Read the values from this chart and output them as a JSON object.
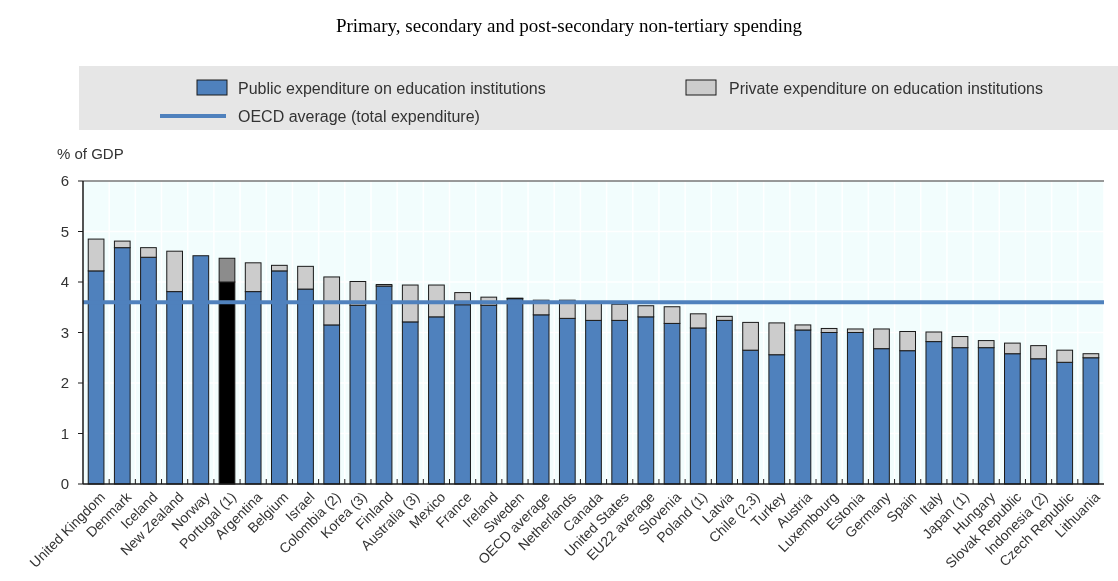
{
  "chart_data": {
    "type": "bar",
    "title": "Primary, secondary and post-secondary non-tertiary spending",
    "ylabel": "% of GDP",
    "stacked": true,
    "categories": [
      "United Kingdom",
      "Denmark",
      "Iceland",
      "New Zealand",
      "Norway",
      "Portugal (1)",
      "Argentina",
      "Belgium",
      "Israel",
      "Colombia (2)",
      "Korea (3)",
      "Finland",
      "Australia (3)",
      "Mexico",
      "France",
      "Ireland",
      "Sweden",
      "OECD average",
      "Netherlands",
      "Canada",
      "United States",
      "EU22 average",
      "Slovenia",
      "Poland (1)",
      "Latvia",
      "Chile (2,3)",
      "Turkey",
      "Austria",
      "Luxembourg",
      "Estonia",
      "Germany",
      "Spain",
      "Italy",
      "Japan (1)",
      "Hungary",
      "Slovak Republic",
      "Indonesia (2)",
      "Czech Republic",
      "Lithuania"
    ],
    "series": [
      {
        "name": "Public expenditure on education institutions",
        "color": "#4f81bd",
        "colors": [
          "#4f81bd",
          "#4f81bd",
          "#4f81bd",
          "#4f81bd",
          "#4f81bd",
          "#000000",
          "#4f81bd",
          "#4f81bd",
          "#4f81bd",
          "#4f81bd",
          "#4f81bd",
          "#4f81bd",
          "#4f81bd",
          "#4f81bd",
          "#4f81bd",
          "#4f81bd",
          "#4f81bd",
          "#4f81bd",
          "#4f81bd",
          "#4f81bd",
          "#4f81bd",
          "#4f81bd",
          "#4f81bd",
          "#4f81bd",
          "#4f81bd",
          "#4f81bd",
          "#4f81bd",
          "#4f81bd",
          "#4f81bd",
          "#4f81bd",
          "#4f81bd",
          "#4f81bd",
          "#4f81bd",
          "#4f81bd",
          "#4f81bd",
          "#4f81bd",
          "#4f81bd",
          "#4f81bd",
          "#4f81bd"
        ],
        "values": [
          4.22,
          4.68,
          4.49,
          3.81,
          4.52,
          4.0,
          3.81,
          4.22,
          3.86,
          3.15,
          3.54,
          3.92,
          3.21,
          3.31,
          3.55,
          3.54,
          3.67,
          3.35,
          3.28,
          3.24,
          3.24,
          3.31,
          3.18,
          3.09,
          3.24,
          2.65,
          2.56,
          3.05,
          3.0,
          3.0,
          2.68,
          2.64,
          2.82,
          2.7,
          2.7,
          2.58,
          2.48,
          2.41,
          2.5
        ]
      },
      {
        "name": "Private expenditure on education institutions",
        "color": "#cccccc",
        "colors": [
          "#cccccc",
          "#cccccc",
          "#cccccc",
          "#cccccc",
          "#cccccc",
          "#8c8c8c",
          "#cccccc",
          "#cccccc",
          "#cccccc",
          "#cccccc",
          "#cccccc",
          "#cccccc",
          "#cccccc",
          "#cccccc",
          "#cccccc",
          "#cccccc",
          "#cccccc",
          "#cccccc",
          "#cccccc",
          "#cccccc",
          "#cccccc",
          "#cccccc",
          "#cccccc",
          "#cccccc",
          "#cccccc",
          "#cccccc",
          "#cccccc",
          "#cccccc",
          "#cccccc",
          "#cccccc",
          "#cccccc",
          "#cccccc",
          "#cccccc",
          "#cccccc",
          "#cccccc",
          "#cccccc",
          "#cccccc",
          "#cccccc",
          "#cccccc"
        ],
        "values": [
          0.63,
          0.13,
          0.19,
          0.8,
          0.0,
          0.47,
          0.57,
          0.11,
          0.45,
          0.95,
          0.47,
          0.03,
          0.73,
          0.63,
          0.24,
          0.16,
          0.01,
          0.29,
          0.36,
          0.36,
          0.32,
          0.22,
          0.33,
          0.28,
          0.08,
          0.55,
          0.63,
          0.1,
          0.08,
          0.07,
          0.39,
          0.38,
          0.19,
          0.22,
          0.14,
          0.21,
          0.26,
          0.24,
          0.08
        ]
      }
    ],
    "ref_lines": [
      {
        "axis": "y",
        "value": 3.6,
        "label": "OECD average (total expenditure)",
        "color": "#4f81bd"
      }
    ],
    "ylim": [
      0,
      6
    ],
    "yticks": [
      0,
      1,
      2,
      3,
      4,
      5,
      6
    ],
    "grid": true,
    "legend": "top"
  }
}
